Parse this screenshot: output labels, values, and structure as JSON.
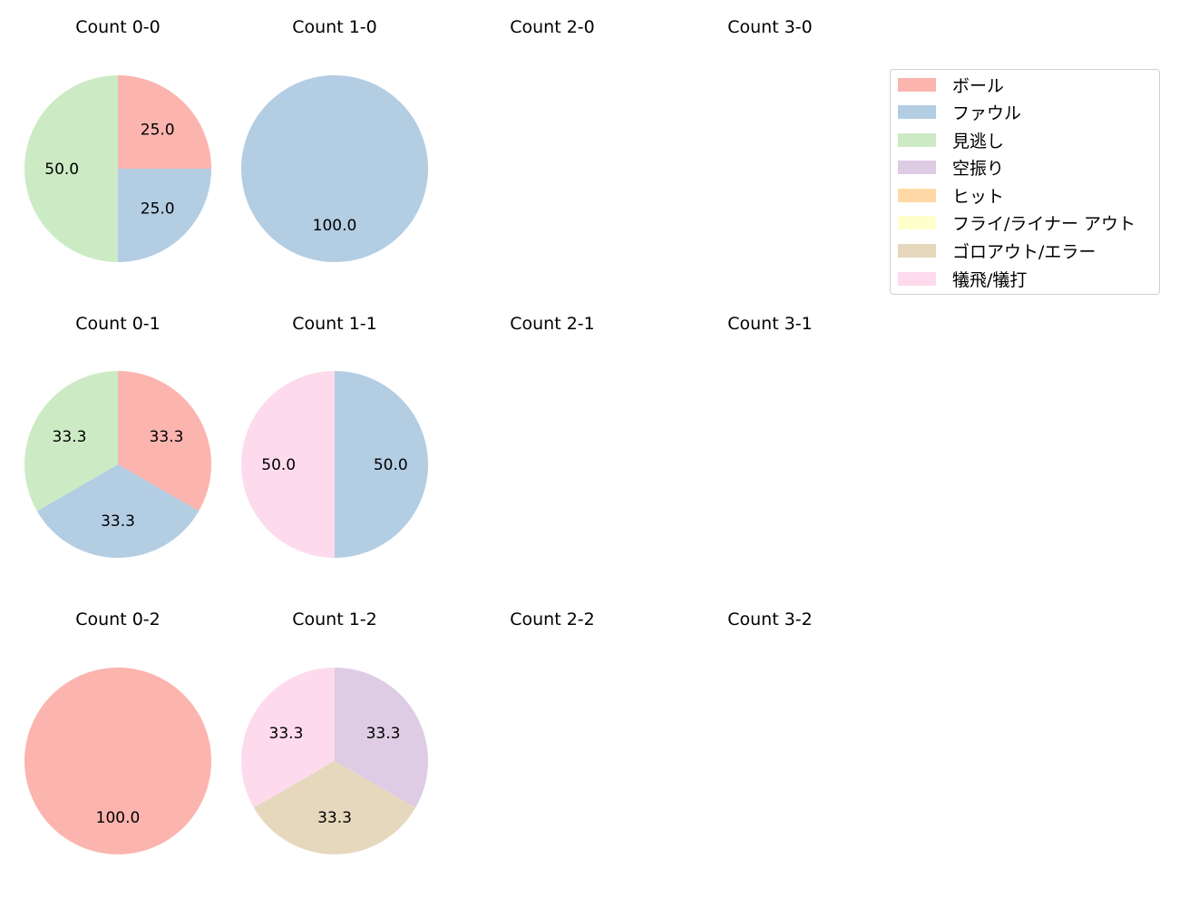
{
  "chart_data": {
    "type": "pie",
    "layout": {
      "rows": 3,
      "cols": 4,
      "start_angle": 90,
      "direction": "clockwise",
      "label_format": "%.1f"
    },
    "legend": {
      "position": "upper right",
      "entries": [
        {
          "label": "ボール",
          "color": "#fbb4ae"
        },
        {
          "label": "ファウル",
          "color": "#b3cde3"
        },
        {
          "label": "見逃し",
          "color": "#ccebc5"
        },
        {
          "label": "空振り",
          "color": "#decbe4"
        },
        {
          "label": "ヒット",
          "color": "#fed9a6"
        },
        {
          "label": "フライ/ライナー アウト",
          "color": "#ffffcc"
        },
        {
          "label": "ゴロアウト/エラー",
          "color": "#e5d8bd"
        },
        {
          "label": "犠飛/犠打",
          "color": "#fddaec"
        }
      ]
    },
    "charts": [
      {
        "title": "Count 0-0",
        "row": 0,
        "col": 0,
        "slices": [
          {
            "label": "ボール",
            "value": 25.0
          },
          {
            "label": "ファウル",
            "value": 25.0
          },
          {
            "label": "見逃し",
            "value": 50.0
          }
        ]
      },
      {
        "title": "Count 1-0",
        "row": 0,
        "col": 1,
        "slices": [
          {
            "label": "ファウル",
            "value": 100.0
          }
        ]
      },
      {
        "title": "Count 2-0",
        "row": 0,
        "col": 2,
        "slices": []
      },
      {
        "title": "Count 3-0",
        "row": 0,
        "col": 3,
        "slices": []
      },
      {
        "title": "Count 0-1",
        "row": 1,
        "col": 0,
        "slices": [
          {
            "label": "ボール",
            "value": 33.3
          },
          {
            "label": "ファウル",
            "value": 33.3
          },
          {
            "label": "見逃し",
            "value": 33.3
          }
        ]
      },
      {
        "title": "Count 1-1",
        "row": 1,
        "col": 1,
        "slices": [
          {
            "label": "ファウル",
            "value": 50.0
          },
          {
            "label": "犠飛/犠打",
            "value": 50.0
          }
        ]
      },
      {
        "title": "Count 2-1",
        "row": 1,
        "col": 2,
        "slices": []
      },
      {
        "title": "Count 3-1",
        "row": 1,
        "col": 3,
        "slices": []
      },
      {
        "title": "Count 0-2",
        "row": 2,
        "col": 0,
        "slices": [
          {
            "label": "ボール",
            "value": 100.0
          }
        ]
      },
      {
        "title": "Count 1-2",
        "row": 2,
        "col": 1,
        "slices": [
          {
            "label": "空振り",
            "value": 33.3
          },
          {
            "label": "ゴロアウト/エラー",
            "value": 33.3
          },
          {
            "label": "犠飛/犠打",
            "value": 33.3
          }
        ]
      },
      {
        "title": "Count 2-2",
        "row": 2,
        "col": 2,
        "slices": []
      },
      {
        "title": "Count 3-2",
        "row": 2,
        "col": 3,
        "slices": []
      }
    ]
  }
}
